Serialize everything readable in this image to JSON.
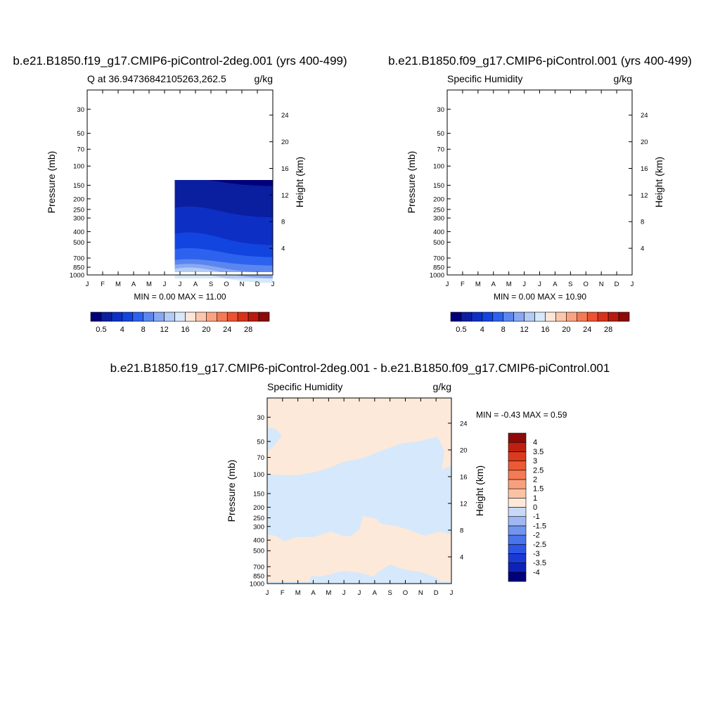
{
  "colors": {
    "full_scale": [
      "#00007a",
      "#0a1ea0",
      "#0d2fc4",
      "#1244e0",
      "#2d62ee",
      "#5b86f0",
      "#88a8f2",
      "#b4cbf5",
      "#d8e8fb",
      "#fde6d8",
      "#fbc7ac",
      "#f9a383",
      "#f47a56",
      "#ec5330",
      "#d8321a",
      "#b81a0e",
      "#8c0a08"
    ],
    "diff": {
      "positive": "#fde9d9",
      "negative": "#d6e8fb"
    },
    "diff_colorbar": [
      "#00007a",
      "#0d23b8",
      "#1a3ad8",
      "#2b56e6",
      "#4a74ec",
      "#7294ef",
      "#9fb7f2",
      "#c8d9f7",
      "#fde9d9",
      "#fbc3a4",
      "#f8a07d",
      "#f47a55",
      "#ec5a35",
      "#dd3a1d",
      "#be2010",
      "#8c0a08"
    ]
  },
  "panels": {
    "left": {
      "title": "b.e21.B1850.f19_g17.CMIP6-piControl-2deg.001 (yrs 400-499)",
      "subtitle_left": "Q at 36.94736842105263,262.5",
      "subtitle_right": "g/kg",
      "minmax": "MIN =   0.00 MAX =  11.00"
    },
    "right": {
      "title": "b.e21.B1850.f09_g17.CMIP6-piControl.001 (yrs 400-499)",
      "subtitle_left": "Specific Humidity",
      "subtitle_right": "g/kg",
      "minmax": "MIN =   0.00 MAX =  10.90"
    },
    "diff": {
      "title": "b.e21.B1850.f19_g17.CMIP6-piControl-2deg.001 - b.e21.B1850.f09_g17.CMIP6-piControl.001",
      "subtitle_left": "Specific Humidity",
      "subtitle_right": "g/kg",
      "minmax": "MIN =  -0.43 MAX =   0.59"
    }
  },
  "axes": {
    "ylabel_left": "Pressure (mb)",
    "ylabel_right": "Height (km)",
    "pressure_ticks": [
      "30",
      "50",
      "70",
      "100",
      "150",
      "200",
      "250",
      "300",
      "400",
      "500",
      "700",
      "850",
      "1000"
    ],
    "height_ticks": [
      "24",
      "20",
      "16",
      "12",
      "8",
      "4"
    ],
    "month_ticks": [
      "J",
      "F",
      "M",
      "A",
      "M",
      "J",
      "J",
      "A",
      "S",
      "O",
      "N",
      "D",
      "J"
    ]
  },
  "colorbar_full": {
    "labels": [
      "0.5",
      "4",
      "8",
      "12",
      "16",
      "20",
      "24",
      "28"
    ]
  },
  "colorbar_diff": {
    "labels": [
      "4",
      "3.5",
      "3",
      "2.5",
      "2",
      "1.5",
      "1",
      "0",
      "-1",
      "-1.5",
      "-2",
      "-2.5",
      "-3",
      "-3.5",
      "-4"
    ]
  },
  "chart_data": [
    {
      "type": "heatmap",
      "title": "b.e21.B1850.f19_g17.CMIP6-piControl-2deg.001 (yrs 400-499)",
      "subtitle": "Q at 36.94736842105263,262.5",
      "units": "g/kg",
      "x": [
        "J",
        "F",
        "M",
        "A",
        "M",
        "J",
        "J",
        "A",
        "S",
        "O",
        "N",
        "D",
        "J"
      ],
      "ylabel": "Pressure (mb)",
      "ylabel_right": "Height (km)",
      "ylim": [
        1000,
        20
      ],
      "y_scale": "log",
      "min": 0.0,
      "max": 11.0
    },
    {
      "type": "heatmap",
      "title": "b.e21.B1850.f09_g17.CMIP6-piControl.001 (yrs 400-499)",
      "subtitle": "Specific Humidity",
      "units": "g/kg",
      "x": [
        "J",
        "F",
        "M",
        "A",
        "M",
        "J",
        "J",
        "A",
        "S",
        "O",
        "N",
        "D",
        "J"
      ],
      "ylabel": "Pressure (mb)",
      "ylabel_right": "Height (km)",
      "ylim": [
        1000,
        20
      ],
      "y_scale": "log",
      "min": 0.0,
      "max": 10.9
    },
    {
      "type": "heatmap",
      "title": "b.e21.B1850.f19_g17.CMIP6-piControl-2deg.001 - b.e21.B1850.f09_g17.CMIP6-piControl.001",
      "subtitle": "Specific Humidity",
      "units": "g/kg",
      "x": [
        "J",
        "F",
        "M",
        "A",
        "M",
        "J",
        "J",
        "A",
        "S",
        "O",
        "N",
        "D",
        "J"
      ],
      "ylabel": "Pressure (mb)",
      "ylabel_right": "Height (km)",
      "ylim": [
        1000,
        20
      ],
      "y_scale": "log",
      "min": -0.43,
      "max": 0.59
    }
  ]
}
